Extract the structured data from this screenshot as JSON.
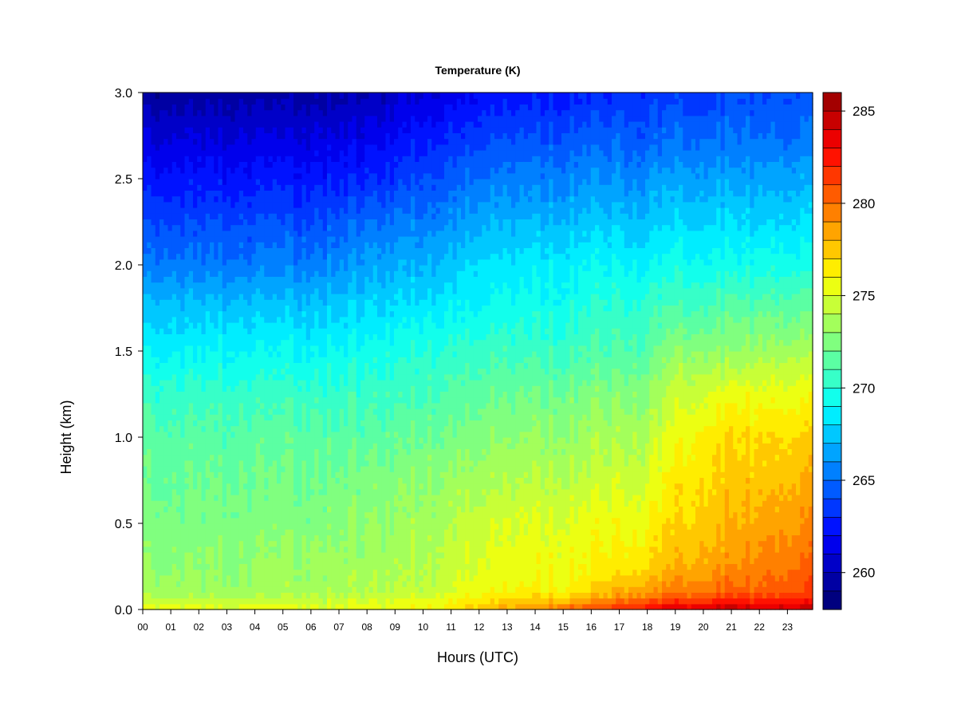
{
  "chart_data": {
    "type": "heatmap",
    "title": "Temperature (K)",
    "xlabel": "Hours (UTC)",
    "ylabel": "Height (km)",
    "x_ticks": [
      "00",
      "01",
      "02",
      "03",
      "04",
      "05",
      "06",
      "07",
      "08",
      "09",
      "10",
      "11",
      "12",
      "13",
      "14",
      "15",
      "16",
      "17",
      "18",
      "19",
      "20",
      "21",
      "22",
      "23"
    ],
    "y_ticks": [
      "0.0",
      "0.5",
      "1.0",
      "1.5",
      "2.0",
      "2.5",
      "3.0"
    ],
    "xlim": [
      0,
      23.9
    ],
    "ylim": [
      0,
      3.0
    ],
    "colorbar": {
      "min": 258,
      "max": 286,
      "step": 1,
      "ticks": [
        "260",
        "265",
        "270",
        "275",
        "280",
        "285"
      ],
      "colors": [
        "#00007F",
        "#0000A3",
        "#0000C8",
        "#0000EC",
        "#0012FF",
        "#0037FF",
        "#005BFF",
        "#0080FF",
        "#00A4FF",
        "#00C8FF",
        "#00EDFF",
        "#12FFEC",
        "#37FFC8",
        "#5BFFA3",
        "#80FF7F",
        "#A3FF5B",
        "#C8FF37",
        "#ECFF12",
        "#FFED00",
        "#FFC800",
        "#FFA400",
        "#FF8000",
        "#FF5B00",
        "#FF3700",
        "#FF1200",
        "#EC0000",
        "#C80000",
        "#A30000"
      ]
    },
    "profile_heights_km": [
      0.0,
      0.05,
      0.1,
      0.25,
      0.5,
      0.75,
      1.0,
      1.25,
      1.5,
      1.75,
      2.0,
      2.25,
      2.5,
      2.75,
      3.0
    ],
    "profiles": [
      {
        "hour": 0,
        "temps": [
          276,
          274.5,
          273.5,
          273,
          272.5,
          272,
          271.5,
          270.5,
          269,
          267.5,
          265.5,
          264,
          262.5,
          261,
          259.5
        ]
      },
      {
        "hour": 2,
        "temps": [
          275.5,
          274.5,
          273.5,
          273,
          272.5,
          272,
          271.5,
          270.5,
          269,
          267.5,
          265.5,
          264,
          262.5,
          261,
          259.5
        ]
      },
      {
        "hour": 4,
        "temps": [
          275.5,
          274.5,
          273.5,
          273,
          272.5,
          272,
          271.5,
          270.5,
          269,
          267.5,
          265.5,
          264,
          262.5,
          261,
          259.5
        ]
      },
      {
        "hour": 6,
        "temps": [
          275.5,
          274.5,
          273.5,
          273.5,
          272.5,
          272,
          271.5,
          270.5,
          269,
          267.5,
          265.5,
          264,
          262.5,
          261,
          259.5
        ]
      },
      {
        "hour": 8,
        "temps": [
          275.5,
          275,
          274,
          273.5,
          273,
          272.5,
          271.5,
          270.5,
          269.5,
          268,
          266.5,
          265,
          263,
          261.5,
          260
        ]
      },
      {
        "hour": 10,
        "temps": [
          276,
          275.5,
          274.5,
          274,
          273.5,
          273,
          272,
          271,
          270,
          268.5,
          267,
          265.5,
          264,
          262.5,
          261
        ]
      },
      {
        "hour": 12,
        "temps": [
          277.5,
          276.5,
          275.5,
          275,
          274.5,
          273.5,
          272.5,
          271.5,
          270.5,
          269,
          268,
          266.5,
          265,
          263.5,
          262
        ]
      },
      {
        "hour": 14,
        "temps": [
          279,
          277.5,
          276,
          275.5,
          275,
          274,
          273,
          272,
          270.5,
          269.5,
          268.5,
          267,
          265.5,
          264,
          262.5
        ]
      },
      {
        "hour": 16,
        "temps": [
          281,
          279,
          277,
          276,
          275.5,
          274.5,
          273.5,
          272.5,
          271,
          270,
          269,
          267.5,
          266,
          264.5,
          263
        ]
      },
      {
        "hour": 18,
        "temps": [
          283,
          281,
          279,
          277,
          276,
          275,
          274,
          273,
          271.5,
          270.5,
          269,
          267.5,
          266,
          264.5,
          263.5
        ]
      },
      {
        "hour": 19,
        "temps": [
          284,
          281.5,
          279.5,
          278,
          277,
          276.5,
          275.5,
          274.5,
          273,
          271,
          269.5,
          268,
          266.5,
          265,
          263.5
        ]
      },
      {
        "hour": 20,
        "temps": [
          284.5,
          282,
          280,
          278.5,
          277.5,
          277,
          276.5,
          275,
          273,
          271,
          269.5,
          268,
          266.5,
          265,
          263.5
        ]
      },
      {
        "hour": 21,
        "temps": [
          285,
          282.5,
          280.5,
          279,
          278,
          277.5,
          277,
          275.5,
          273,
          271.5,
          269.5,
          268,
          266.5,
          265,
          264
        ]
      },
      {
        "hour": 22,
        "temps": [
          284.5,
          282.5,
          280.5,
          279.5,
          278.5,
          277.5,
          277,
          275.5,
          273.5,
          271.5,
          269.5,
          268,
          266.5,
          265,
          264
        ]
      },
      {
        "hour": 23.9,
        "temps": [
          284.5,
          282.5,
          281,
          280,
          279,
          278,
          277,
          275.5,
          273.5,
          271.5,
          269.5,
          268,
          266.5,
          265,
          264
        ]
      }
    ]
  }
}
